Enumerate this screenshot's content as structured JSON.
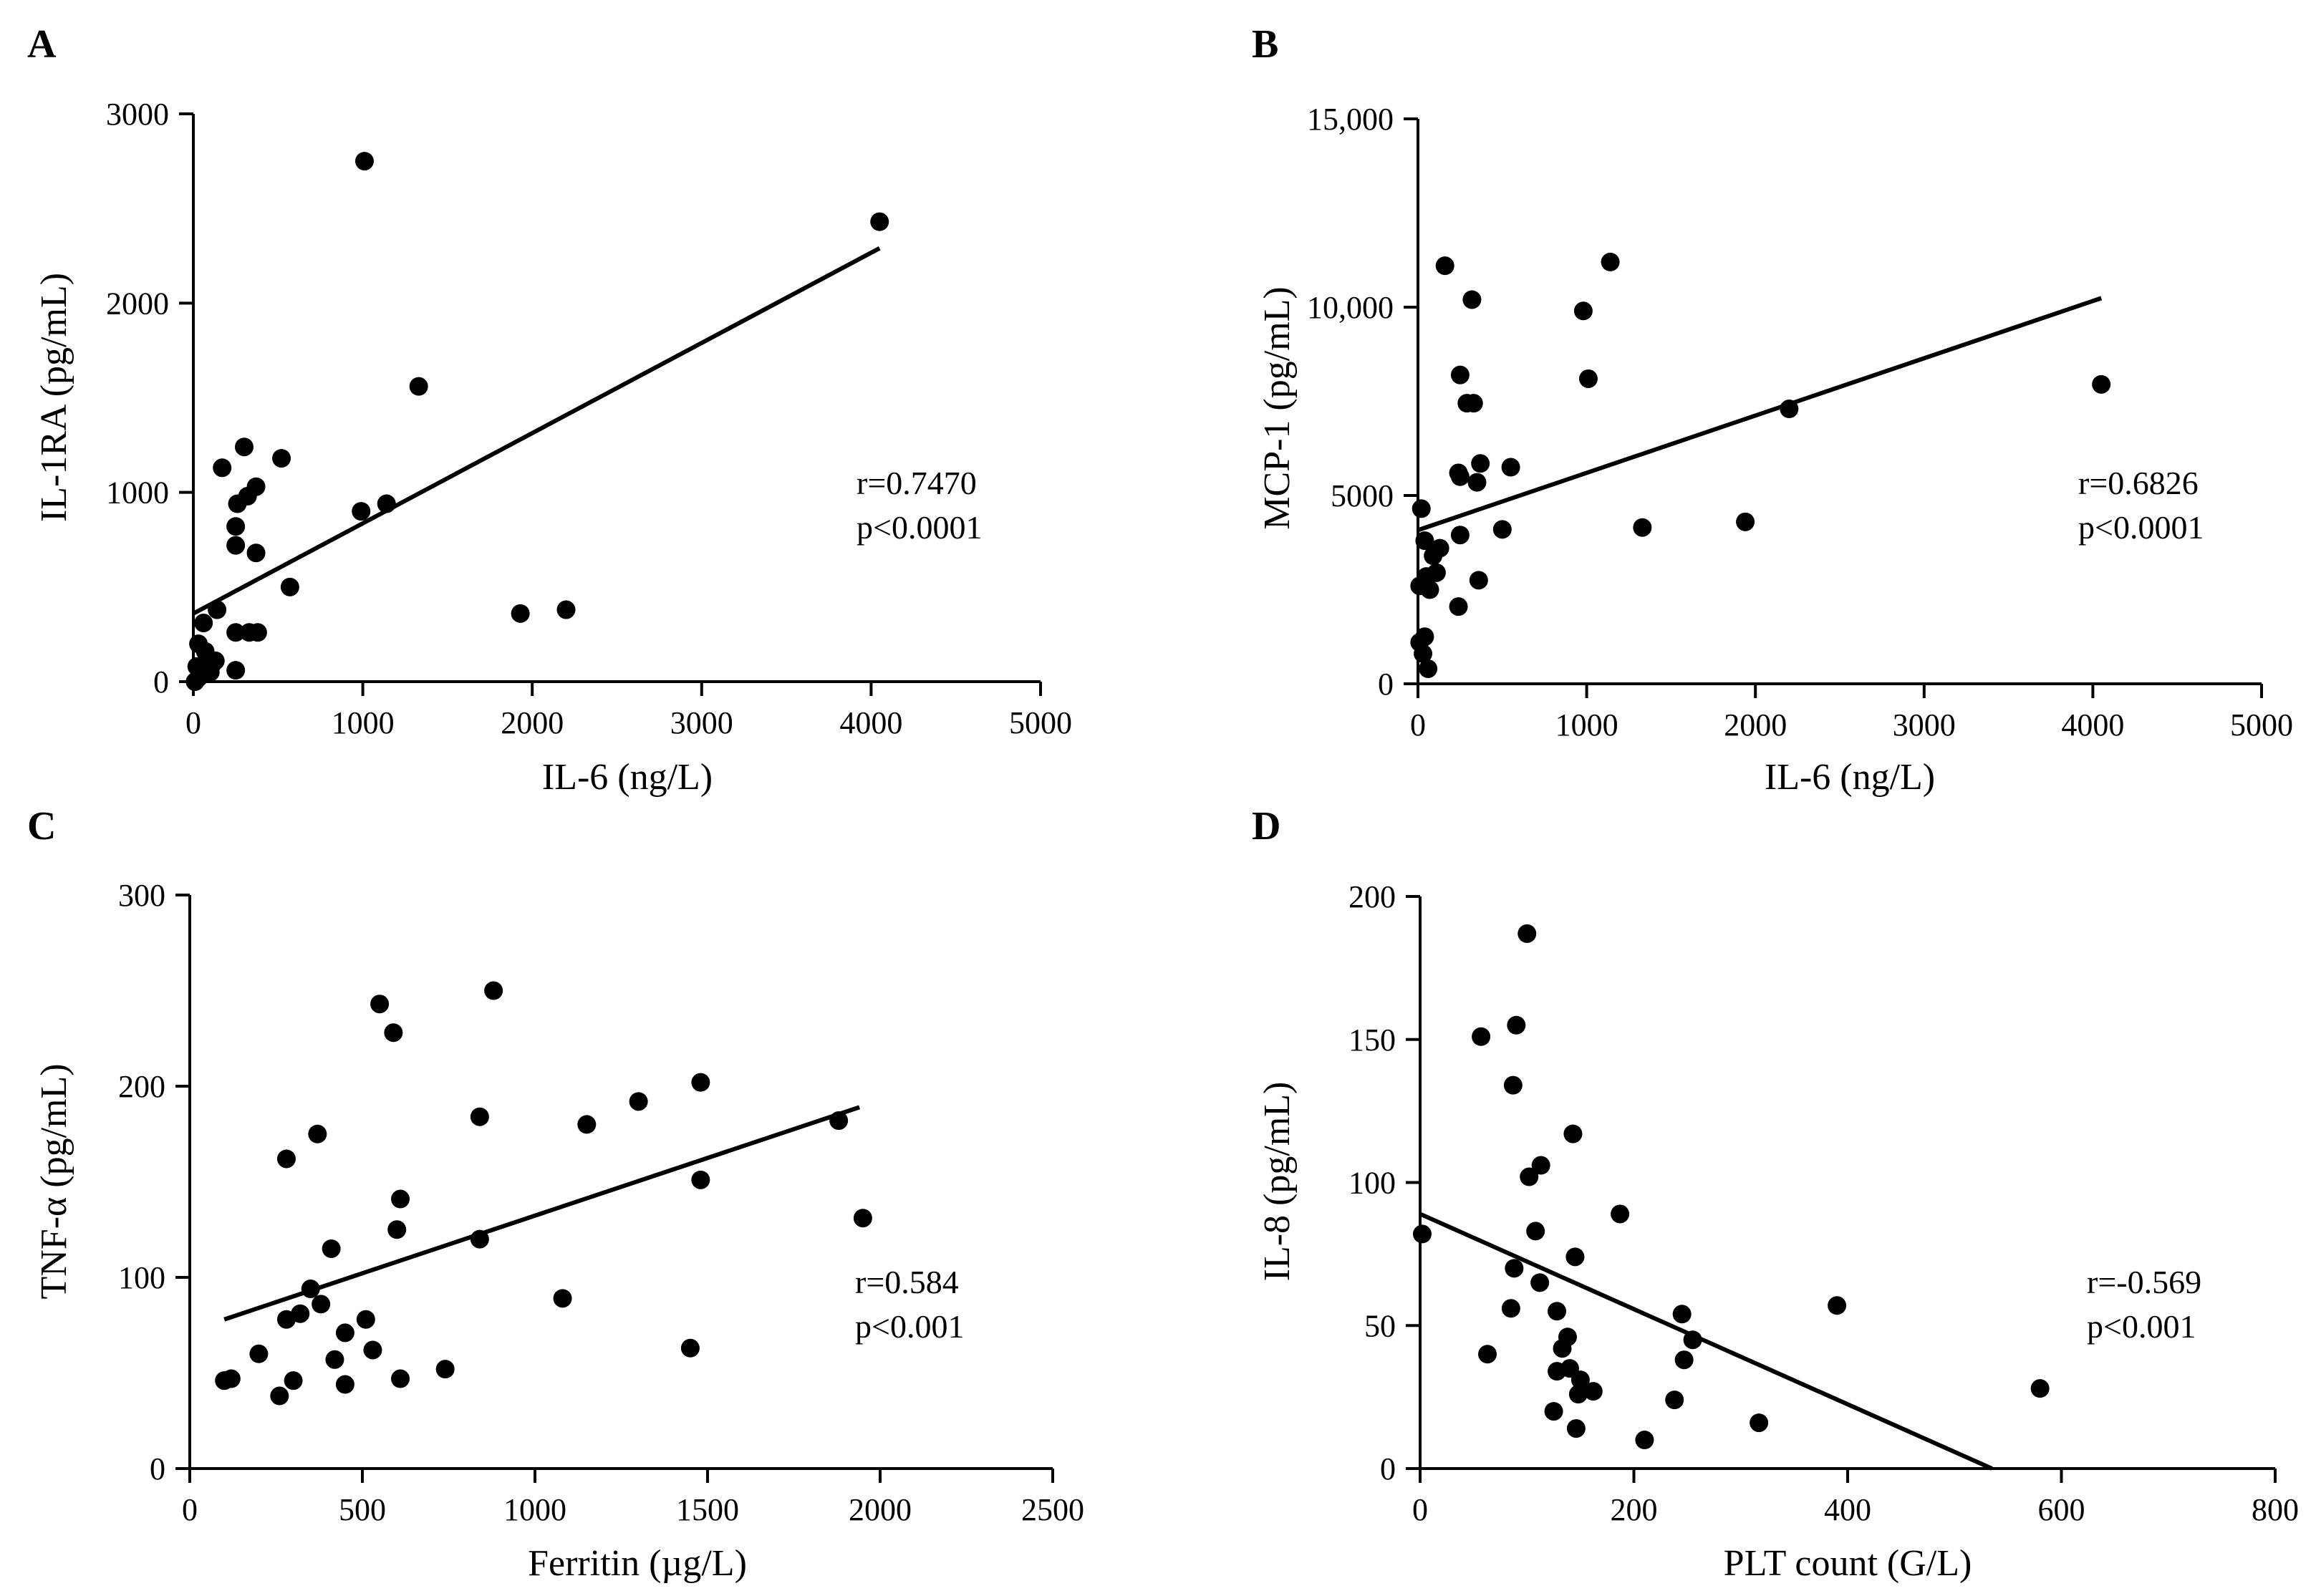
{
  "chart_data": [
    {
      "panel": "A",
      "type": "scatter",
      "xlabel": "IL-6 (ng/L)",
      "ylabel": "IL-1RA (pg/mL)",
      "xlim": [
        0,
        5000
      ],
      "ylim": [
        0,
        3000
      ],
      "xticks": [
        0,
        1000,
        2000,
        3000,
        4000,
        5000
      ],
      "yticks": [
        0,
        1000,
        2000,
        3000
      ],
      "xtick_labels": [
        "0",
        "1000",
        "2000",
        "3000",
        "4000",
        "5000"
      ],
      "ytick_labels": [
        "0",
        "1000",
        "2000",
        "3000"
      ],
      "points": [
        [
          1010,
          2750
        ],
        [
          4050,
          2430
        ],
        [
          1330,
          1560
        ],
        [
          300,
          1240
        ],
        [
          520,
          1180
        ],
        [
          170,
          1130
        ],
        [
          370,
          1030
        ],
        [
          320,
          980
        ],
        [
          260,
          940
        ],
        [
          1140,
          940
        ],
        [
          990,
          900
        ],
        [
          250,
          820
        ],
        [
          250,
          720
        ],
        [
          370,
          680
        ],
        [
          570,
          500
        ],
        [
          140,
          380
        ],
        [
          1930,
          360
        ],
        [
          2200,
          380
        ],
        [
          60,
          310
        ],
        [
          250,
          260
        ],
        [
          330,
          260
        ],
        [
          380,
          260
        ],
        [
          30,
          200
        ],
        [
          70,
          160
        ],
        [
          90,
          120
        ],
        [
          130,
          110
        ],
        [
          110,
          90
        ],
        [
          20,
          80
        ],
        [
          60,
          60
        ],
        [
          100,
          50
        ],
        [
          250,
          60
        ],
        [
          30,
          20
        ],
        [
          10,
          0
        ]
      ],
      "fit_line": {
        "x": [
          0,
          4050
        ],
        "y": [
          360,
          2290
        ]
      },
      "annotation": {
        "r": "r=0.7470",
        "p": "p<0.0001"
      }
    },
    {
      "panel": "B",
      "type": "scatter",
      "xlabel": "IL-6 (ng/L)",
      "ylabel": "MCP-1 (pg/mL)",
      "xlim": [
        0,
        5000
      ],
      "ylim": [
        0,
        15000
      ],
      "xticks": [
        0,
        1000,
        2000,
        3000,
        4000,
        5000
      ],
      "yticks": [
        0,
        5000,
        10000,
        15000
      ],
      "xtick_labels": [
        "0",
        "1000",
        "2000",
        "3000",
        "4000",
        "5000"
      ],
      "ytick_labels": [
        "0",
        "5000",
        "10,000",
        "15,000"
      ],
      "points": [
        [
          1140,
          11200
        ],
        [
          160,
          11100
        ],
        [
          320,
          10200
        ],
        [
          980,
          9900
        ],
        [
          250,
          8200
        ],
        [
          1010,
          8100
        ],
        [
          4050,
          7950
        ],
        [
          290,
          7450
        ],
        [
          330,
          7450
        ],
        [
          2200,
          7300
        ],
        [
          370,
          5850
        ],
        [
          550,
          5750
        ],
        [
          240,
          5600
        ],
        [
          250,
          5500
        ],
        [
          350,
          5350
        ],
        [
          20,
          4650
        ],
        [
          1940,
          4300
        ],
        [
          1330,
          4150
        ],
        [
          500,
          4100
        ],
        [
          250,
          3950
        ],
        [
          40,
          3800
        ],
        [
          130,
          3600
        ],
        [
          90,
          3400
        ],
        [
          110,
          2950
        ],
        [
          50,
          2850
        ],
        [
          360,
          2750
        ],
        [
          10,
          2600
        ],
        [
          70,
          2500
        ],
        [
          240,
          2050
        ],
        [
          40,
          1250
        ],
        [
          10,
          1100
        ],
        [
          30,
          800
        ],
        [
          60,
          400
        ]
      ],
      "fit_line": {
        "x": [
          0,
          4050
        ],
        "y": [
          4080,
          10240
        ]
      },
      "annotation": {
        "r": "r=0.6826",
        "p": "p<0.0001"
      }
    },
    {
      "panel": "C",
      "type": "scatter",
      "xlabel": "Ferritin (µg/L)",
      "ylabel": "TNF-α (pg/mL)",
      "xlim": [
        0,
        2500
      ],
      "ylim": [
        0,
        300
      ],
      "xticks": [
        0,
        500,
        1000,
        1500,
        2000,
        2500
      ],
      "yticks": [
        0,
        100,
        200,
        300
      ],
      "xtick_labels": [
        "0",
        "500",
        "1000",
        "1500",
        "2000",
        "2500"
      ],
      "ytick_labels": [
        "0",
        "100",
        "200",
        "300"
      ],
      "points": [
        [
          880,
          250
        ],
        [
          550,
          243
        ],
        [
          590,
          228
        ],
        [
          1480,
          202
        ],
        [
          1300,
          192
        ],
        [
          840,
          184
        ],
        [
          1880,
          182
        ],
        [
          1150,
          180
        ],
        [
          370,
          175
        ],
        [
          280,
          162
        ],
        [
          1480,
          151
        ],
        [
          610,
          141
        ],
        [
          1950,
          131
        ],
        [
          600,
          125
        ],
        [
          840,
          120
        ],
        [
          410,
          115
        ],
        [
          350,
          94
        ],
        [
          1080,
          89
        ],
        [
          380,
          86
        ],
        [
          320,
          81
        ],
        [
          280,
          78
        ],
        [
          510,
          78
        ],
        [
          450,
          71
        ],
        [
          530,
          62
        ],
        [
          1450,
          63
        ],
        [
          200,
          60
        ],
        [
          420,
          57
        ],
        [
          740,
          52
        ],
        [
          100,
          46
        ],
        [
          120,
          47
        ],
        [
          300,
          46
        ],
        [
          610,
          47
        ],
        [
          450,
          44
        ],
        [
          260,
          38
        ]
      ],
      "fit_line": {
        "x": [
          100,
          1940
        ],
        "y": [
          78,
          189
        ]
      },
      "annotation": {
        "r": "r=0.584",
        "p": "p<0.001"
      }
    },
    {
      "panel": "D",
      "type": "scatter",
      "xlabel": "PLT count (G/L)",
      "ylabel": "IL-8 (pg/mL)",
      "xlim": [
        0,
        800
      ],
      "ylim": [
        0,
        200
      ],
      "xticks": [
        0,
        200,
        400,
        600,
        800
      ],
      "yticks": [
        0,
        50,
        100,
        150,
        200
      ],
      "xtick_labels": [
        "0",
        "200",
        "400",
        "600",
        "800"
      ],
      "ytick_labels": [
        "0",
        "50",
        "100",
        "150",
        "200"
      ],
      "points": [
        [
          100,
          187
        ],
        [
          90,
          155
        ],
        [
          57,
          151
        ],
        [
          87,
          134
        ],
        [
          143,
          117
        ],
        [
          113,
          106
        ],
        [
          102,
          102
        ],
        [
          187,
          89
        ],
        [
          2,
          82
        ],
        [
          108,
          83
        ],
        [
          145,
          74
        ],
        [
          88,
          70
        ],
        [
          112,
          65
        ],
        [
          390,
          57
        ],
        [
          85,
          56
        ],
        [
          128,
          55
        ],
        [
          245,
          54
        ],
        [
          138,
          46
        ],
        [
          255,
          45
        ],
        [
          133,
          42
        ],
        [
          63,
          40
        ],
        [
          247,
          38
        ],
        [
          128,
          34
        ],
        [
          140,
          35
        ],
        [
          150,
          31
        ],
        [
          162,
          27
        ],
        [
          148,
          26
        ],
        [
          238,
          24
        ],
        [
          125,
          20
        ],
        [
          317,
          16
        ],
        [
          146,
          14
        ],
        [
          210,
          10
        ],
        [
          580,
          28
        ]
      ],
      "fit_line": {
        "x": [
          0,
          535
        ],
        "y": [
          89,
          0
        ]
      },
      "annotation": {
        "r": "r=-0.569",
        "p": "p<0.001"
      }
    }
  ]
}
